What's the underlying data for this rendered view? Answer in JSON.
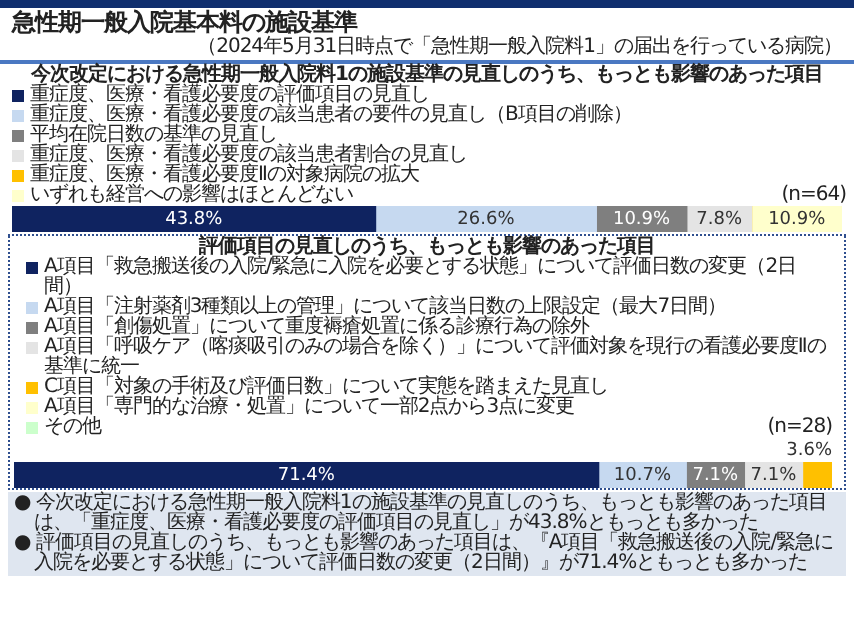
{
  "chart_data": [
    {
      "type": "bar",
      "orientation": "horizontal",
      "stacked": true,
      "title": "急性期一般入院基本料の施設基準",
      "subtitle": "（2024年5月31日時点で「急性期一般入院料1」の届出を行っている病院）",
      "legend_title": "今次改定における急性期一般入院料1の施設基準の見直しのうち、もっとも影響のあった項目",
      "categories": [
        null
      ],
      "tick_labels": false,
      "legend": "top",
      "annotations": [
        "(n=64)"
      ],
      "series": [
        {
          "name": "重症度、医療・看護必要度の評価項目の見直し",
          "color": "#0f2360",
          "values": [
            43.8
          ],
          "value_labels": [
            "43.8%"
          ]
        },
        {
          "name": "重症度、医療・看護必要度の該当患者の要件の見直し（B項目の削除）",
          "color": "#c6d9f0",
          "values": [
            26.6
          ],
          "value_labels": [
            "26.6%"
          ]
        },
        {
          "name": "平均在院日数の基準の見直し",
          "color": "#7f7f7f",
          "values": [
            10.9
          ],
          "value_labels": [
            "10.9%"
          ]
        },
        {
          "name": "重症度、医療・看護必要度の該当患者割合の見直し",
          "color": "#e4e4e4",
          "values": [
            7.8
          ],
          "value_labels": [
            "7.8%"
          ]
        },
        {
          "name": "重症度、医療・看護必要度Ⅱの対象病院の拡大",
          "color": "#ffc000",
          "values": [
            0
          ],
          "value_labels": [
            null
          ]
        },
        {
          "name": "いずれも経営への影響はほとんどない",
          "color": "#ffffcc",
          "values": [
            10.9
          ],
          "value_labels": [
            "10.9%"
          ]
        }
      ]
    },
    {
      "type": "bar",
      "orientation": "horizontal",
      "stacked": true,
      "legend_title": "評価項目の見直しのうち、もっとも影響のあった項目",
      "categories": [
        null
      ],
      "tick_labels": false,
      "legend": "top",
      "annotations": [
        "(n=28)",
        "● 今次改定における急性期一般入院料1の施設基準の見直しのうち、もっとも影響のあった項目は、「重症度、医療・看護必要度の評価項目の見直し」が43.8%ともっとも多かった",
        "● 評価項目の見直しのうち、もっとも影響のあった項目は、『A項目「救急搬送後の入院/緊急に入院を必要とする状態」について評価日数の変更（2日間）』が71.4%ともっとも多かった"
      ],
      "series": [
        {
          "name": "A項目「救急搬送後の入院/緊急に入院を必要とする状態」について評価日数の変更（2日間）",
          "color": "#0f2360",
          "values": [
            71.4
          ],
          "value_labels": [
            "71.4%"
          ]
        },
        {
          "name": "A項目「注射薬剤3種類以上の管理」について該当日数の上限設定（最大7日間）",
          "color": "#c6d9f0",
          "values": [
            10.7
          ],
          "value_labels": [
            "10.7%"
          ]
        },
        {
          "name": "A項目「創傷処置」について重度褥瘡処置に係る診療行為の除外",
          "color": "#7f7f7f",
          "values": [
            7.1
          ],
          "value_labels": [
            "7.1%"
          ]
        },
        {
          "name": "A項目「呼吸ケア（喀痰吸引のみの場合を除く）」について評価対象を現行の看護必要度Ⅱの基準に統一",
          "color": "#e4e4e4",
          "values": [
            7.1
          ],
          "value_labels": [
            "7.1%"
          ]
        },
        {
          "name": "C項目「対象の手術及び評価日数」について実態を踏まえた見直し",
          "color": "#ffc000",
          "values": [
            3.6
          ],
          "value_labels": [
            "3.6%"
          ]
        },
        {
          "name": "A項目「専門的な治療・処置」について一部2点から3点に変更",
          "color": "#ffffcc",
          "values": [
            0
          ],
          "value_labels": [
            null
          ]
        },
        {
          "name": "その他",
          "color": "#ccffcc",
          "values": [
            0
          ],
          "value_labels": [
            null
          ]
        }
      ]
    }
  ]
}
